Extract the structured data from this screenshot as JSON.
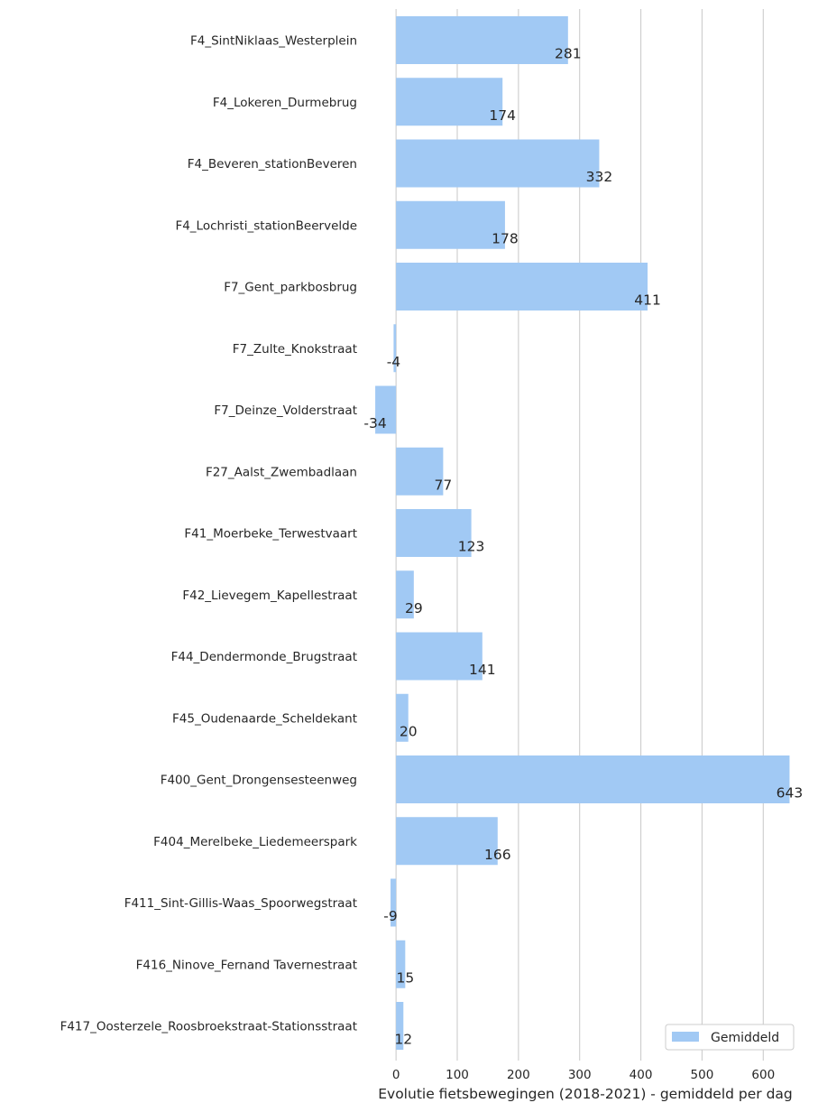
{
  "chart_data": {
    "type": "bar",
    "orientation": "horizontal",
    "categories": [
      "F4_SintNiklaas_Westerplein",
      "F4_Lokeren_Durmebrug",
      "F4_Beveren_stationBeveren",
      "F4_Lochristi_stationBeervelde",
      "F7_Gent_parkbosbrug",
      "F7_Zulte_Knokstraat",
      "F7_Deinze_Volderstraat",
      "F27_Aalst_Zwembadlaan",
      "F41_Moerbeke_Terwestvaart",
      "F42_Lievegem_Kapellestraat",
      "F44_Dendermonde_Brugstraat",
      "F45_Oudenaarde_Scheldekant",
      "F400_Gent_Drongensesteenweg",
      "F404_Merelbeke_Liedemeerspark",
      "F411_Sint-Gillis-Waas_Spoorwegstraat",
      "F416_Ninove_Fernand Tavernestraat",
      "F417_Oosterzele_Roosbroekstraat-Stationsstraat"
    ],
    "series": [
      {
        "name": "Gemiddeld",
        "color": "#a1c9f4",
        "values": [
          281,
          174,
          332,
          178,
          411,
          -4,
          -34,
          77,
          123,
          29,
          141,
          20,
          643,
          166,
          -9,
          15,
          12
        ]
      }
    ],
    "data_labels": [
      "281",
      "174",
      "332",
      "178",
      "411",
      "-4",
      "-34",
      "77",
      "123",
      "29",
      "141",
      "20",
      "643",
      "166",
      "-9",
      "15",
      "12"
    ],
    "xlabel": "Evolutie fietsbewegingen (2018-2021) - gemiddeld per dag",
    "ylabel": "",
    "xlim": [
      -40,
      660
    ],
    "xticks": [
      0,
      100,
      200,
      300,
      400,
      500,
      600
    ],
    "xtick_labels": [
      "0",
      "100",
      "200",
      "300",
      "400",
      "500",
      "600"
    ],
    "grid": "vertical",
    "legend_position": "bottom-right"
  }
}
